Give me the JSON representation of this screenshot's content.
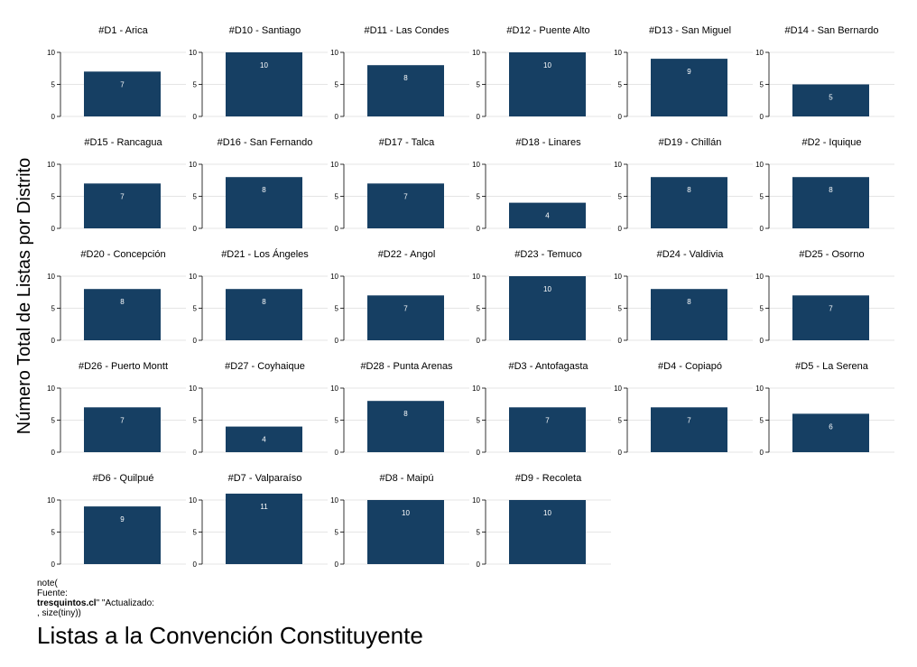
{
  "note": {
    "line1": "note(",
    "line2": "Fuente:",
    "source": "tresquintos.cl",
    "line3_rest": "\" \"Actualizado:",
    "line4": ", size(tiny))"
  },
  "chart_data": {
    "type": "bar",
    "title": "Listas a la Convención Constituyente",
    "ylabel": "Número Total de Listas por Distrito",
    "xlabel": "",
    "ylim": [
      0,
      10
    ],
    "yticks": [
      0,
      5,
      10
    ],
    "grid": true,
    "bar_color": "#163f63",
    "grid_color": "#e5e5e5",
    "panels": [
      {
        "name": "#D1 - Arica",
        "value": 7
      },
      {
        "name": "#D10 - Santiago",
        "value": 10
      },
      {
        "name": "#D11 - Las Condes",
        "value": 8
      },
      {
        "name": "#D12 - Puente Alto",
        "value": 10
      },
      {
        "name": "#D13 - San Miguel",
        "value": 9
      },
      {
        "name": "#D14 - San Bernardo",
        "value": 5
      },
      {
        "name": "#D15 - Rancagua",
        "value": 7
      },
      {
        "name": "#D16 - San Fernando",
        "value": 8
      },
      {
        "name": "#D17 - Talca",
        "value": 7
      },
      {
        "name": "#D18 - Linares",
        "value": 4
      },
      {
        "name": "#D19 - Chillán",
        "value": 8
      },
      {
        "name": "#D2 - Iquique",
        "value": 8
      },
      {
        "name": "#D20 - Concepción",
        "value": 8
      },
      {
        "name": "#D21 - Los Ángeles",
        "value": 8
      },
      {
        "name": "#D22 - Angol",
        "value": 7
      },
      {
        "name": "#D23 - Temuco",
        "value": 10
      },
      {
        "name": "#D24 - Valdivia",
        "value": 8
      },
      {
        "name": "#D25 - Osorno",
        "value": 7
      },
      {
        "name": "#D26 - Puerto Montt",
        "value": 7
      },
      {
        "name": "#D27 - Coyhaique",
        "value": 4
      },
      {
        "name": "#D28 - Punta Arenas",
        "value": 8
      },
      {
        "name": "#D3 - Antofagasta",
        "value": 7
      },
      {
        "name": "#D4 - Copiapó",
        "value": 7
      },
      {
        "name": "#D5 - La Serena",
        "value": 6
      },
      {
        "name": "#D6 - Quilpué",
        "value": 9
      },
      {
        "name": "#D7 - Valparaíso",
        "value": 11
      },
      {
        "name": "#D8 - Maipú",
        "value": 10
      },
      {
        "name": "#D9 - Recoleta",
        "value": 10
      }
    ]
  }
}
